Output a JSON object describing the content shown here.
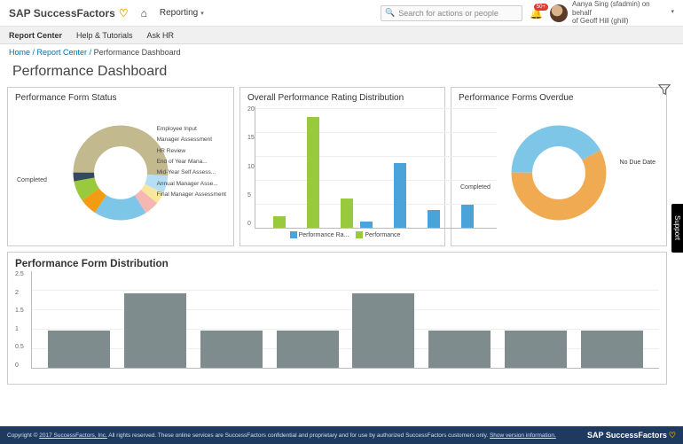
{
  "header": {
    "brand": "SAP SuccessFactors",
    "nav_reporting": "Reporting",
    "search_placeholder": "Search for actions or people",
    "notif_count": "50+",
    "user_line1": "Aanya Sing (sfadmin) on behalf",
    "user_line2": "of Geoff Hill (ghill)"
  },
  "secbar": {
    "report_center": "Report Center",
    "help": "Help & Tutorials",
    "askhr": "Ask HR"
  },
  "crumb": {
    "home": "Home",
    "rc": "Report Center",
    "cur": "Performance Dashboard"
  },
  "page_title": "Performance Dashboard",
  "support_tab": "Support",
  "tile1": {
    "title": "Performance Form Status",
    "type": "donut",
    "left_label": "Completed",
    "slices": [
      {
        "label": "Completed",
        "pct": 51,
        "color": "#c3b98e"
      },
      {
        "label": "Final Manager Assessment",
        "pct": 6,
        "color": "#b6dff5"
      },
      {
        "label": "Annual Manager Asse...",
        "pct": 4,
        "color": "#f9e79f"
      },
      {
        "label": "Mid-Year Self Assess...",
        "pct": 5,
        "color": "#f5b7b1"
      },
      {
        "label": "End of Year Mana...",
        "pct": 18,
        "color": "#7ec6e8"
      },
      {
        "label": "HR Review",
        "pct": 6,
        "color": "#f39c12"
      },
      {
        "label": "Manager Assessment",
        "pct": 7,
        "color": "#99c93c"
      },
      {
        "label": "Employee Input",
        "pct": 3,
        "color": "#34495e"
      }
    ],
    "right_labels": [
      "Employee Input",
      "Manager Assessment",
      "HR Review",
      "",
      "End of Year Mana...",
      "",
      "Mid-Year Self Assess...",
      "Annual Manager Asse...",
      "Final Manager Assessment"
    ]
  },
  "tile2": {
    "title": "Overall Performance Rating Distribution",
    "type": "grouped-bar",
    "ymax": 20,
    "ytick_step": 5,
    "yticks": [
      "0",
      "5",
      "10",
      "15",
      "20"
    ],
    "colors": {
      "blue": "#4aa3d9",
      "green": "#99c93c"
    },
    "pairs": [
      {
        "blue": 0,
        "green": 2
      },
      {
        "blue": 0,
        "green": 19
      },
      {
        "blue": 0,
        "green": 5
      },
      {
        "blue": 1,
        "green": 0
      },
      {
        "blue": 11,
        "green": 0
      },
      {
        "blue": 3,
        "green": 0
      },
      {
        "blue": 4,
        "green": 0
      }
    ],
    "legend": [
      "Performance Ra...",
      "Performance"
    ]
  },
  "tile3": {
    "title": "Performance Forms Overdue",
    "type": "donut",
    "left_label": "Completed",
    "slices": [
      {
        "label": "Completed",
        "pct": 42,
        "color": "#7ec6e8"
      },
      {
        "label": "No Due Date",
        "pct": 58,
        "color": "#f0ab52"
      }
    ],
    "right_label": "No Due Date"
  },
  "tile4": {
    "title": "Performance Form Distribution",
    "type": "bar",
    "ymax": 2.5,
    "ytick_step": 0.5,
    "yticks": [
      "0",
      "0.5",
      "1",
      "1.5",
      "2",
      "2.5"
    ],
    "bar_color": "#7f8c8d",
    "values": [
      1,
      2,
      1,
      1,
      2,
      1,
      1,
      1
    ]
  },
  "footer": {
    "copyright_pre": "Copyright © ",
    "copyright_link": "2017 SuccessFactors, Inc.",
    "copyright_post": " All rights reserved. These online services are SuccessFactors confidential and proprietary and for use by authorized SuccessFactors customers only. ",
    "version_link": "Show version information.",
    "brand": "SAP SuccessFactors"
  }
}
